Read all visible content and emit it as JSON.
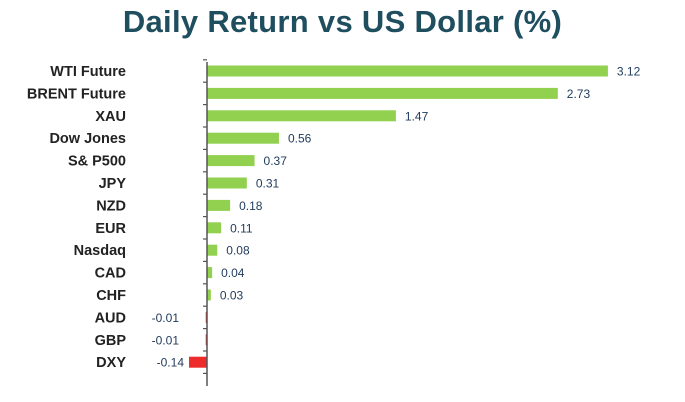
{
  "chart_data": {
    "type": "bar",
    "orientation": "horizontal",
    "title": "Daily Return vs US Dollar (%)",
    "categories": [
      "WTI Future",
      "BRENT Future",
      "XAU",
      "Dow Jones",
      "S& P500",
      "JPY",
      "NZD",
      "EUR",
      "Nasdaq",
      "CAD",
      "CHF",
      "AUD",
      "GBP",
      "DXY"
    ],
    "values": [
      3.12,
      2.73,
      1.47,
      0.56,
      0.37,
      0.31,
      0.18,
      0.11,
      0.08,
      0.04,
      0.03,
      -0.01,
      -0.01,
      -0.14
    ],
    "value_labels": [
      "3.12",
      "2.73",
      "1.47",
      "0.56",
      "0.37",
      "0.31",
      "0.18",
      "0.11",
      "0.08",
      "0.04",
      "0.03",
      "-0.01",
      "-0.01",
      "-0.14"
    ],
    "xlim": [
      -0.14,
      3.12
    ],
    "grid": false,
    "legend": "none",
    "colors": {
      "positive": "#92d050",
      "negative": "#ee2b2b",
      "title": "#1f4e5f",
      "axis": "#555555",
      "value_text": "#1f3a5a"
    }
  }
}
